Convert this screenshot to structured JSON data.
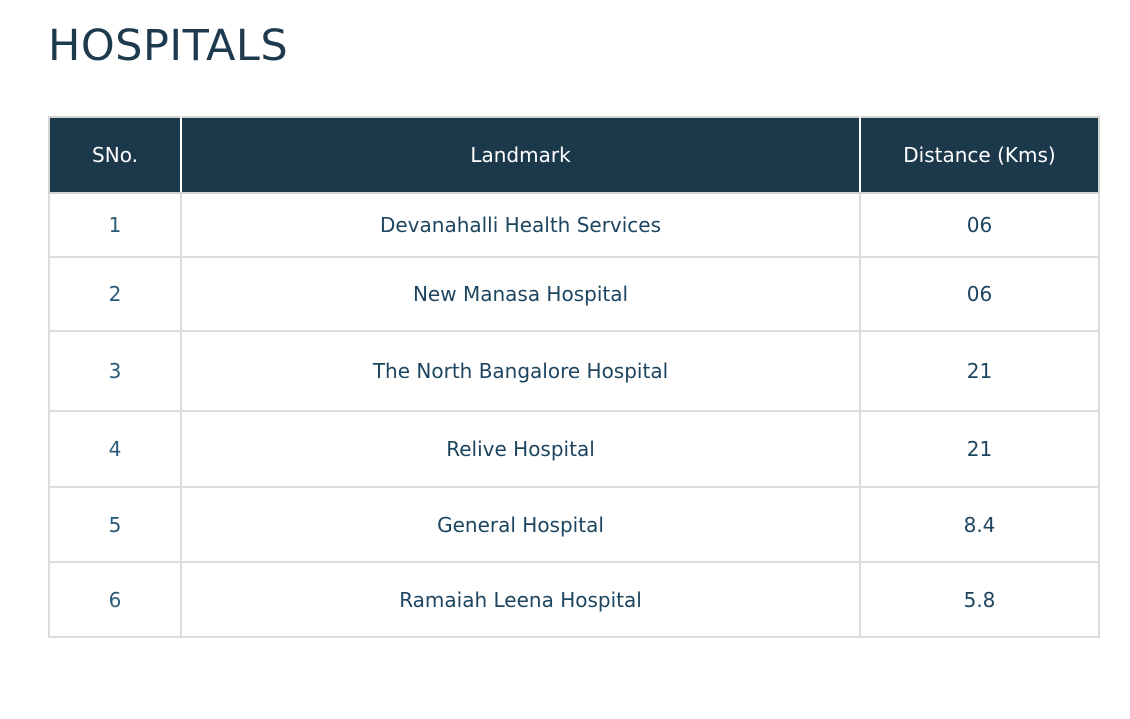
{
  "page": {
    "title": "HOSPITALS"
  },
  "table": {
    "headers": {
      "sno": "SNo.",
      "landmark": "Landmark",
      "distance": "Distance (Kms)"
    },
    "rows": [
      {
        "sno": "1",
        "landmark": "Devanahalli Health Services",
        "distance": "06"
      },
      {
        "sno": "2",
        "landmark": "New Manasa Hospital",
        "distance": "06"
      },
      {
        "sno": "3",
        "landmark": "The North Bangalore Hospital",
        "distance": "21"
      },
      {
        "sno": "4",
        "landmark": "Relive Hospital",
        "distance": "21"
      },
      {
        "sno": "5",
        "landmark": "General Hospital",
        "distance": "8.4"
      },
      {
        "sno": "6",
        "landmark": "Ramaiah Leena Hospital",
        "distance": "5.8"
      }
    ]
  },
  "colors": {
    "header_background": "#1c384b",
    "title_text": "#1e3a4f",
    "cell_text": "#1e4560",
    "border": "#dcdcdc"
  }
}
